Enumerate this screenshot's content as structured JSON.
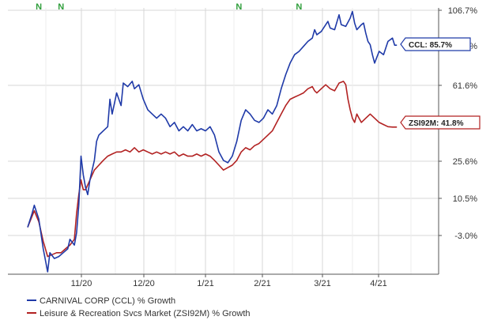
{
  "chart_data": {
    "type": "line",
    "x_ticks": [
      "11/20",
      "12/20",
      "1/21",
      "2/21",
      "3/21",
      "4/21"
    ],
    "x_range": [
      0,
      167
    ],
    "y_ticks": [
      "106.7%",
      "61.6%",
      "25.6%",
      "10.5%",
      "-3.0%"
    ],
    "y_tick_values": [
      106.7,
      61.6,
      25.6,
      10.5,
      -3.0
    ],
    "ylim": [
      -22,
      107
    ],
    "y_scale_note": "axis is non-linear; tick spacing is uniform",
    "markers": [
      "N",
      "N",
      "N",
      "N"
    ],
    "marker_x": [
      5,
      15,
      95,
      122
    ],
    "series": [
      {
        "name": "CARNIVAL CORP (CCL) % Growth",
        "color": "#1f3aa8",
        "end_label": "CCL: 85.7%",
        "points": [
          [
            0,
            0
          ],
          [
            2,
            5
          ],
          [
            3,
            8
          ],
          [
            5,
            3
          ],
          [
            7,
            -10
          ],
          [
            9,
            -22
          ],
          [
            10,
            -12
          ],
          [
            12,
            -15
          ],
          [
            14,
            -14
          ],
          [
            16,
            -12
          ],
          [
            18,
            -10
          ],
          [
            19,
            -5
          ],
          [
            21,
            -8
          ],
          [
            22,
            -2
          ],
          [
            23,
            8
          ],
          [
            24,
            28
          ],
          [
            25,
            20
          ],
          [
            26,
            15
          ],
          [
            27,
            12
          ],
          [
            28,
            18
          ],
          [
            29,
            22
          ],
          [
            30,
            26
          ],
          [
            31,
            35
          ],
          [
            32,
            38
          ],
          [
            34,
            40
          ],
          [
            36,
            42
          ],
          [
            37,
            55
          ],
          [
            38,
            48
          ],
          [
            40,
            58
          ],
          [
            42,
            52
          ],
          [
            43,
            63
          ],
          [
            45,
            61
          ],
          [
            47,
            64
          ],
          [
            48,
            60
          ],
          [
            50,
            62
          ],
          [
            52,
            55
          ],
          [
            54,
            50
          ],
          [
            56,
            48
          ],
          [
            58,
            46
          ],
          [
            60,
            48
          ],
          [
            62,
            46
          ],
          [
            64,
            42
          ],
          [
            66,
            44
          ],
          [
            68,
            40
          ],
          [
            70,
            42
          ],
          [
            72,
            40
          ],
          [
            74,
            43
          ],
          [
            76,
            40
          ],
          [
            78,
            41
          ],
          [
            80,
            40
          ],
          [
            82,
            42
          ],
          [
            84,
            38
          ],
          [
            86,
            30
          ],
          [
            88,
            26
          ],
          [
            90,
            25
          ],
          [
            92,
            28
          ],
          [
            94,
            35
          ],
          [
            96,
            45
          ],
          [
            98,
            50
          ],
          [
            100,
            48
          ],
          [
            102,
            45
          ],
          [
            104,
            44
          ],
          [
            106,
            46
          ],
          [
            108,
            50
          ],
          [
            110,
            48
          ],
          [
            112,
            52
          ],
          [
            114,
            60
          ],
          [
            116,
            68
          ],
          [
            118,
            75
          ],
          [
            120,
            80
          ],
          [
            122,
            82
          ],
          [
            124,
            85
          ],
          [
            126,
            88
          ],
          [
            128,
            90
          ],
          [
            129,
            95
          ],
          [
            130,
            92
          ],
          [
            132,
            94
          ],
          [
            134,
            98
          ],
          [
            135,
            100
          ],
          [
            136,
            96
          ],
          [
            138,
            95
          ],
          [
            140,
            104
          ],
          [
            141,
            98
          ],
          [
            143,
            97
          ],
          [
            145,
            102
          ],
          [
            146,
            106
          ],
          [
            147,
            99
          ],
          [
            148,
            95
          ],
          [
            150,
            98
          ],
          [
            151,
            99
          ],
          [
            152,
            93
          ],
          [
            153,
            88
          ],
          [
            154,
            86
          ],
          [
            155,
            80
          ],
          [
            156,
            75
          ],
          [
            158,
            82
          ],
          [
            160,
            80
          ],
          [
            162,
            88
          ],
          [
            164,
            90
          ],
          [
            165,
            85.7
          ],
          [
            166,
            85.7
          ]
        ]
      },
      {
        "name": "Leisure & Recreation Svcs Market (ZSI92M) % Growth",
        "color": "#b22222",
        "end_label": "ZSI92M: 41.8%",
        "points": [
          [
            0,
            0
          ],
          [
            2,
            4
          ],
          [
            3,
            6
          ],
          [
            5,
            2
          ],
          [
            7,
            -6
          ],
          [
            9,
            -14
          ],
          [
            11,
            -13
          ],
          [
            13,
            -12
          ],
          [
            15,
            -12
          ],
          [
            17,
            -10
          ],
          [
            19,
            -8
          ],
          [
            21,
            -5
          ],
          [
            22,
            5
          ],
          [
            23,
            12
          ],
          [
            24,
            18
          ],
          [
            25,
            14
          ],
          [
            26,
            14
          ],
          [
            27,
            16
          ],
          [
            28,
            18
          ],
          [
            29,
            20
          ],
          [
            30,
            22
          ],
          [
            32,
            24
          ],
          [
            34,
            26
          ],
          [
            36,
            28
          ],
          [
            38,
            29
          ],
          [
            40,
            30
          ],
          [
            42,
            30
          ],
          [
            44,
            31
          ],
          [
            46,
            30
          ],
          [
            48,
            32
          ],
          [
            50,
            30
          ],
          [
            52,
            31
          ],
          [
            54,
            30
          ],
          [
            56,
            29
          ],
          [
            58,
            30
          ],
          [
            60,
            29
          ],
          [
            62,
            30
          ],
          [
            64,
            29
          ],
          [
            66,
            30
          ],
          [
            68,
            28
          ],
          [
            70,
            29
          ],
          [
            72,
            28
          ],
          [
            74,
            28
          ],
          [
            76,
            29
          ],
          [
            78,
            28
          ],
          [
            80,
            29
          ],
          [
            82,
            28
          ],
          [
            84,
            26
          ],
          [
            86,
            24
          ],
          [
            88,
            22
          ],
          [
            90,
            23
          ],
          [
            92,
            24
          ],
          [
            94,
            26
          ],
          [
            96,
            30
          ],
          [
            98,
            32
          ],
          [
            100,
            31
          ],
          [
            102,
            33
          ],
          [
            104,
            34
          ],
          [
            106,
            36
          ],
          [
            108,
            38
          ],
          [
            110,
            40
          ],
          [
            112,
            44
          ],
          [
            114,
            48
          ],
          [
            116,
            52
          ],
          [
            118,
            55
          ],
          [
            120,
            56
          ],
          [
            122,
            57
          ],
          [
            124,
            58
          ],
          [
            126,
            60
          ],
          [
            128,
            61
          ],
          [
            129,
            59
          ],
          [
            130,
            58
          ],
          [
            132,
            60
          ],
          [
            134,
            62
          ],
          [
            136,
            60
          ],
          [
            138,
            59
          ],
          [
            140,
            63
          ],
          [
            142,
            64
          ],
          [
            143,
            62
          ],
          [
            144,
            55
          ],
          [
            145,
            50
          ],
          [
            146,
            46
          ],
          [
            147,
            44
          ],
          [
            148,
            48
          ],
          [
            149,
            46
          ],
          [
            150,
            44
          ],
          [
            152,
            46
          ],
          [
            154,
            48
          ],
          [
            156,
            46
          ],
          [
            158,
            44
          ],
          [
            160,
            43
          ],
          [
            162,
            42
          ],
          [
            164,
            41.8
          ],
          [
            166,
            41.8
          ]
        ]
      }
    ]
  }
}
